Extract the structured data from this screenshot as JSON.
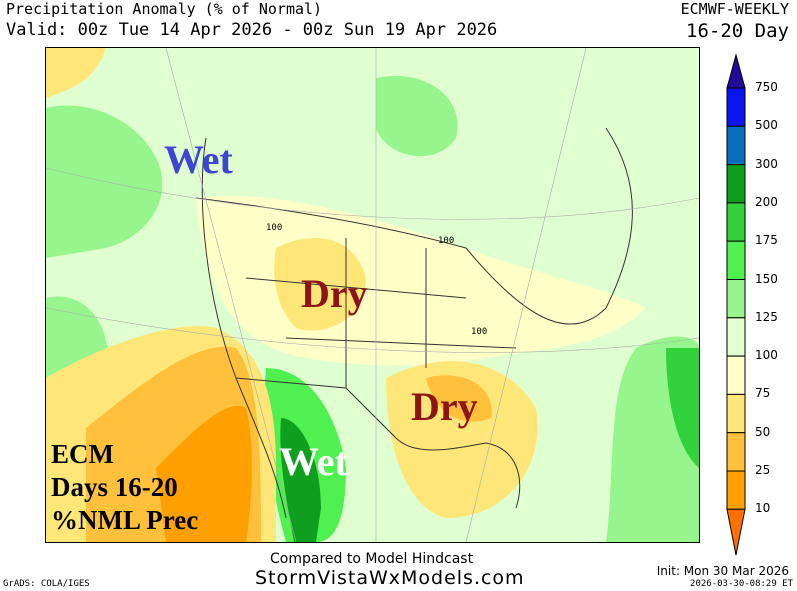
{
  "header": {
    "title": "Precipitation Anomaly (% of Normal)",
    "valid": "Valid: 00z Tue 14 Apr 2026 - 00z Sun 19 Apr 2026",
    "model": "ECMWF-WEEKLY",
    "period": "16-20 Day"
  },
  "map": {
    "annotations": [
      {
        "text": "Wet",
        "color": "#3c46d2"
      },
      {
        "text": "Dry",
        "color": "#8c1414"
      },
      {
        "text": "Dry",
        "color": "#8c1414"
      },
      {
        "text": "Wet",
        "color": "#ffffff"
      }
    ],
    "contour_labels": [
      "100",
      "100",
      "100"
    ],
    "legend_block": [
      "ECM",
      "Days 16-20",
      "%NML Prec"
    ]
  },
  "colorbar": {
    "labels": [
      "750",
      "500",
      "300",
      "200",
      "175",
      "150",
      "125",
      "100",
      "75",
      "50",
      "25",
      "10"
    ],
    "colors": [
      "#1e0a96",
      "#0a14f0",
      "#0a6ebe",
      "#0f9f1e",
      "#32d23c",
      "#50f050",
      "#96f58c",
      "#e0ffd0",
      "#ffffc8",
      "#ffe678",
      "#ffc03c",
      "#ff9f00",
      "#ff7000"
    ]
  },
  "footer": {
    "compared": "Compared to Model Hindcast",
    "site": "StormVistaWxModels.com",
    "init": "Init: Mon 30 Mar 2026",
    "stamp": "2026-03-30-08:29 ET",
    "grads": "GrADS: COLA/IGES"
  }
}
